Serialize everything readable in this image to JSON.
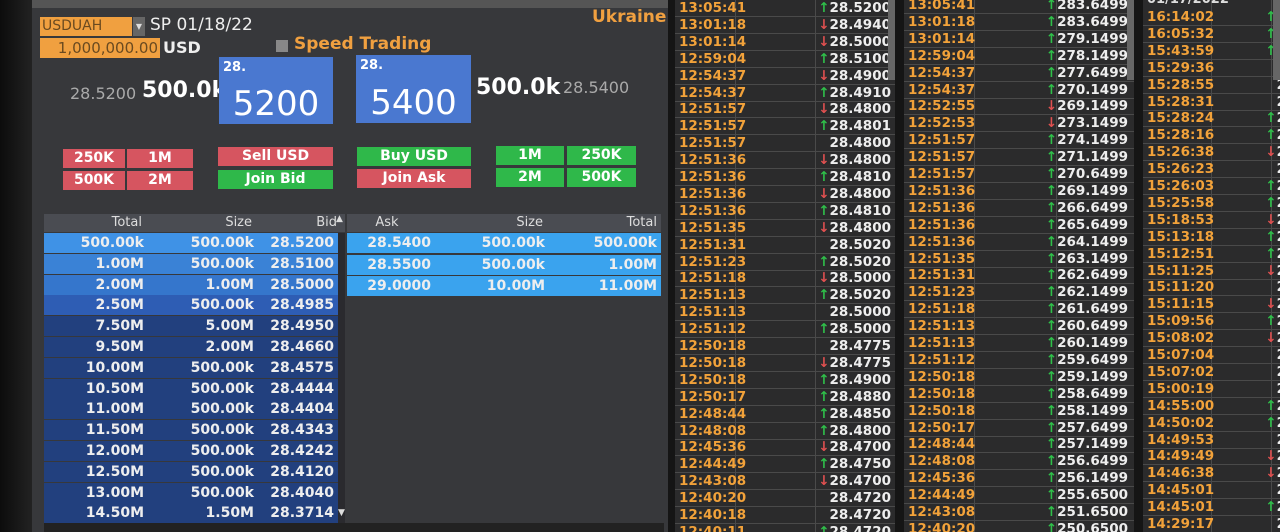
{
  "header": {
    "pair": "USDUAH",
    "settle": "SP 01/18/22",
    "amount": "1,000,000.00",
    "currency": "USD",
    "speed_trading": "Speed Trading",
    "country": "Ukraine"
  },
  "quote": {
    "bid_price": "28.5200",
    "bid_size": "500.0k",
    "bid_big_prefix": "28.",
    "bid_big": "5200",
    "ask_big_prefix": "28.",
    "ask_big": "5400",
    "ask_size": "500.0k",
    "ask_price": "28.5400"
  },
  "buttons": {
    "sell_250k": "250K",
    "sell_1m": "1M",
    "sell_500k": "500K",
    "sell_2m": "2M",
    "sell_usd": "Sell USD",
    "join_bid": "Join Bid",
    "buy_usd": "Buy USD",
    "join_ask": "Join Ask",
    "buy_1m": "1M",
    "buy_250k": "250K",
    "buy_2m": "2M",
    "buy_500k": "500K"
  },
  "book": {
    "headers": {
      "bid_total": "Total",
      "bid_size": "Size",
      "bid": "Bid",
      "ask": "Ask",
      "ask_size": "Size",
      "ask_total": "Total"
    },
    "bids": [
      [
        "500.00k",
        "500.00k",
        "28.5200"
      ],
      [
        "1.00M",
        "500.00k",
        "28.5100"
      ],
      [
        "2.00M",
        "1.00M",
        "28.5000"
      ],
      [
        "2.50M",
        "500.00k",
        "28.4985"
      ],
      [
        "7.50M",
        "5.00M",
        "28.4950"
      ],
      [
        "9.50M",
        "2.00M",
        "28.4660"
      ],
      [
        "10.00M",
        "500.00k",
        "28.4575"
      ],
      [
        "10.50M",
        "500.00k",
        "28.4444"
      ],
      [
        "11.00M",
        "500.00k",
        "28.4404"
      ],
      [
        "11.50M",
        "500.00k",
        "28.4343"
      ],
      [
        "12.00M",
        "500.00k",
        "28.4242"
      ],
      [
        "12.50M",
        "500.00k",
        "28.4120"
      ],
      [
        "13.00M",
        "500.00k",
        "28.4040"
      ],
      [
        "14.50M",
        "1.50M",
        "28.3714"
      ]
    ],
    "asks": [
      [
        "28.5400",
        "500.00k",
        "500.00k"
      ],
      [
        "28.5500",
        "500.00k",
        "1.00M"
      ],
      [
        "29.0000",
        "10.00M",
        "11.00M"
      ]
    ]
  },
  "colors": {
    "accent": "#f0a040",
    "bid_box": "#4a78d0",
    "sell": "#d65560",
    "buy": "#2fb84a",
    "up": "#2fc04a",
    "down": "#e05050"
  },
  "feeds": [
    {
      "header": "",
      "rows": [
        [
          "13:05:41",
          "up",
          "28.5200"
        ],
        [
          "13:01:18",
          "down",
          "28.4940"
        ],
        [
          "13:01:14",
          "down",
          "28.5000"
        ],
        [
          "12:59:04",
          "up",
          "28.5100"
        ],
        [
          "12:54:37",
          "down",
          "28.4900"
        ],
        [
          "12:54:37",
          "up",
          "28.4910"
        ],
        [
          "12:51:57",
          "down",
          "28.4800"
        ],
        [
          "12:51:57",
          "up",
          "28.4801"
        ],
        [
          "12:51:57",
          "",
          "28.4800"
        ],
        [
          "12:51:36",
          "down",
          "28.4800"
        ],
        [
          "12:51:36",
          "up",
          "28.4810"
        ],
        [
          "12:51:36",
          "down",
          "28.4800"
        ],
        [
          "12:51:36",
          "up",
          "28.4810"
        ],
        [
          "12:51:35",
          "down",
          "28.4800"
        ],
        [
          "12:51:31",
          "",
          "28.5020"
        ],
        [
          "12:51:23",
          "up",
          "28.5020"
        ],
        [
          "12:51:18",
          "down",
          "28.5000"
        ],
        [
          "12:51:13",
          "up",
          "28.5020"
        ],
        [
          "12:51:13",
          "",
          "28.5000"
        ],
        [
          "12:51:12",
          "up",
          "28.5000"
        ],
        [
          "12:50:18",
          "",
          "28.4775"
        ],
        [
          "12:50:18",
          "down",
          "28.4775"
        ],
        [
          "12:50:18",
          "up",
          "28.4900"
        ],
        [
          "12:50:17",
          "up",
          "28.4880"
        ],
        [
          "12:48:44",
          "up",
          "28.4850"
        ],
        [
          "12:48:08",
          "up",
          "28.4800"
        ],
        [
          "12:45:36",
          "down",
          "28.4700"
        ],
        [
          "12:44:49",
          "up",
          "28.4750"
        ],
        [
          "12:43:08",
          "down",
          "28.4700"
        ],
        [
          "12:40:20",
          "",
          "28.4720"
        ],
        [
          "12:40:18",
          "",
          "28.4720"
        ],
        [
          "12:40:11",
          "up",
          "28.4720"
        ]
      ]
    },
    {
      "header": "",
      "rows": [
        [
          "13:05:41",
          "up",
          "283.6499"
        ],
        [
          "13:01:18",
          "up",
          "283.6499"
        ],
        [
          "13:01:14",
          "up",
          "279.1499"
        ],
        [
          "12:59:04",
          "up",
          "278.1499"
        ],
        [
          "12:54:37",
          "up",
          "277.6499"
        ],
        [
          "12:54:37",
          "up",
          "270.1499"
        ],
        [
          "12:52:55",
          "down",
          "269.1499"
        ],
        [
          "12:52:53",
          "down",
          "273.1499"
        ],
        [
          "12:51:57",
          "up",
          "274.1499"
        ],
        [
          "12:51:57",
          "up",
          "271.1499"
        ],
        [
          "12:51:57",
          "up",
          "270.6499"
        ],
        [
          "12:51:36",
          "up",
          "269.1499"
        ],
        [
          "12:51:36",
          "up",
          "266.6499"
        ],
        [
          "12:51:36",
          "up",
          "265.6499"
        ],
        [
          "12:51:36",
          "up",
          "264.1499"
        ],
        [
          "12:51:35",
          "up",
          "263.1499"
        ],
        [
          "12:51:31",
          "up",
          "262.6499"
        ],
        [
          "12:51:23",
          "up",
          "262.1499"
        ],
        [
          "12:51:18",
          "up",
          "261.6499"
        ],
        [
          "12:51:13",
          "up",
          "260.6499"
        ],
        [
          "12:51:13",
          "up",
          "260.1499"
        ],
        [
          "12:51:12",
          "up",
          "259.6499"
        ],
        [
          "12:50:18",
          "up",
          "259.1499"
        ],
        [
          "12:50:18",
          "up",
          "258.6499"
        ],
        [
          "12:50:18",
          "up",
          "258.1499"
        ],
        [
          "12:50:17",
          "up",
          "257.6499"
        ],
        [
          "12:48:44",
          "up",
          "257.1499"
        ],
        [
          "12:48:08",
          "up",
          "256.6499"
        ],
        [
          "12:45:36",
          "up",
          "256.1499"
        ],
        [
          "12:44:49",
          "up",
          "255.6500"
        ],
        [
          "12:43:08",
          "up",
          "251.6500"
        ],
        [
          "12:40:20",
          "up",
          "250.6500"
        ]
      ]
    },
    {
      "header": "01/17/2022",
      "rows": [
        [
          "16:14:02",
          "up",
          "2"
        ],
        [
          "16:05:32",
          "up",
          "2"
        ],
        [
          "15:43:59",
          "up",
          "2"
        ],
        [
          "15:29:36",
          "",
          "2"
        ],
        [
          "15:28:55",
          "",
          "2"
        ],
        [
          "15:28:31",
          "",
          "2"
        ],
        [
          "15:28:24",
          "up",
          "2"
        ],
        [
          "15:28:16",
          "up",
          "2"
        ],
        [
          "15:26:38",
          "down",
          "2"
        ],
        [
          "15:26:23",
          "",
          "2"
        ],
        [
          "15:26:03",
          "up",
          "2"
        ],
        [
          "15:25:58",
          "up",
          "2"
        ],
        [
          "15:18:53",
          "down",
          "2"
        ],
        [
          "15:13:18",
          "up",
          "2"
        ],
        [
          "15:12:51",
          "up",
          "2"
        ],
        [
          "15:11:25",
          "down",
          "2"
        ],
        [
          "15:11:20",
          "",
          "2"
        ],
        [
          "15:11:15",
          "down",
          "2"
        ],
        [
          "15:09:56",
          "up",
          "2"
        ],
        [
          "15:08:02",
          "down",
          "2"
        ],
        [
          "15:07:04",
          "",
          "2"
        ],
        [
          "15:07:02",
          "",
          "2"
        ],
        [
          "15:00:19",
          "",
          "2"
        ],
        [
          "14:55:00",
          "up",
          "2"
        ],
        [
          "14:50:02",
          "up",
          "2"
        ],
        [
          "14:49:53",
          "",
          "2"
        ],
        [
          "14:49:49",
          "down",
          "2"
        ],
        [
          "14:46:38",
          "down",
          "2"
        ],
        [
          "14:45:01",
          "",
          "2"
        ],
        [
          "14:45:01",
          "up",
          "2"
        ],
        [
          "14:29:17",
          "",
          "2"
        ]
      ]
    }
  ]
}
